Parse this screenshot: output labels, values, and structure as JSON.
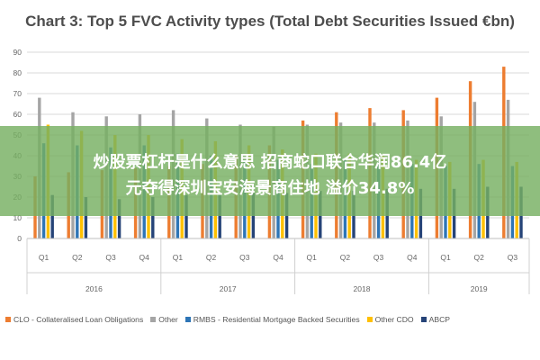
{
  "chart_data": {
    "type": "bar",
    "title": "Chart 3: Top 5 FVC Activity types (Total Debt Securities Issued €bn)",
    "categories": [
      "Q1",
      "Q2",
      "Q3",
      "Q4",
      "Q1",
      "Q2",
      "Q3",
      "Q4",
      "Q1",
      "Q2",
      "Q3",
      "Q4",
      "Q1",
      "Q2",
      "Q3"
    ],
    "years": [
      {
        "label": "2016",
        "quarters": 4
      },
      {
        "label": "2017",
        "quarters": 4
      },
      {
        "label": "2018",
        "quarters": 4
      },
      {
        "label": "2019",
        "quarters": 3
      }
    ],
    "ylim": [
      0,
      90
    ],
    "yticks": [
      "0",
      "10",
      "20",
      "30",
      "40",
      "50",
      "60",
      "70",
      "80",
      "90"
    ],
    "grid": true,
    "legend_position": "bottom",
    "series": [
      {
        "name": "CLO - Collateralised Loan Obligations",
        "color": "#ed7d31",
        "values": [
          30,
          32,
          33,
          34,
          35,
          36,
          40,
          45,
          57,
          61,
          63,
          62,
          68,
          76,
          83
        ]
      },
      {
        "name": "Other",
        "color": "#a5a5a5",
        "values": [
          68,
          61,
          59,
          60,
          62,
          58,
          55,
          54,
          55,
          56,
          56,
          57,
          59,
          66,
          67
        ]
      },
      {
        "name": "RMBS - Residential Mortgage Backed Securities",
        "color": "#2e75b6",
        "values": [
          46,
          45,
          44,
          45,
          41,
          40,
          38,
          38,
          36,
          38,
          37,
          36,
          35,
          36,
          35
        ]
      },
      {
        "name": "Other CDO",
        "color": "#ffc000",
        "values": [
          55,
          52,
          50,
          50,
          48,
          47,
          45,
          43,
          41,
          41,
          40,
          38,
          37,
          38,
          37
        ]
      },
      {
        "name": "ABCP",
        "color": "#264478",
        "values": [
          21,
          20,
          19,
          20,
          21,
          21,
          22,
          22,
          23,
          23,
          24,
          24,
          24,
          25,
          25
        ]
      }
    ]
  },
  "overlay": {
    "line1": "炒股票杠杆是什么意思 招商蛇口联合华润86.4亿",
    "line2": "元夺得深圳宝安海景商住地 溢价34.8%"
  }
}
